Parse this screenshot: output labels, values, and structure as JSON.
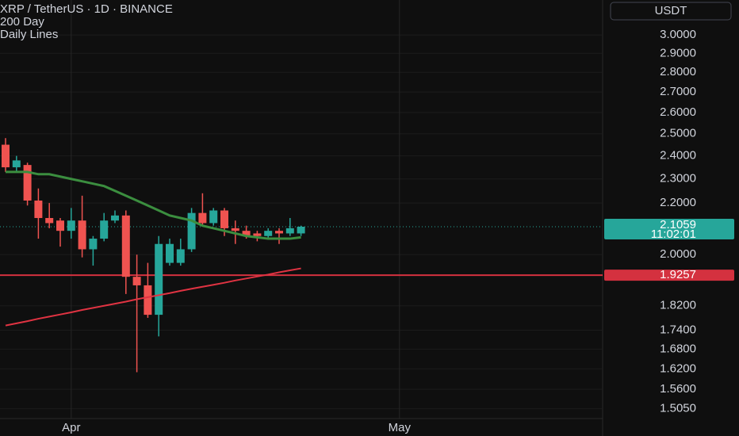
{
  "chart_data": {
    "type": "candlestick",
    "title": "XRP / TetherUS · 1D · BINANCE",
    "indicators": [
      "200 Day",
      "Daily Lines"
    ],
    "currency": "USDT",
    "log_scale": true,
    "grid": true,
    "ylim": [
      1.478,
      3.2
    ],
    "yticks": [
      {
        "value": 3,
        "label": "3.0000"
      },
      {
        "value": 2.9,
        "label": "2.9000"
      },
      {
        "value": 2.8,
        "label": "2.8000"
      },
      {
        "value": 2.7,
        "label": "2.7000"
      },
      {
        "value": 2.6,
        "label": "2.6000"
      },
      {
        "value": 2.5,
        "label": "2.5000"
      },
      {
        "value": 2.4,
        "label": "2.4000"
      },
      {
        "value": 2.3,
        "label": "2.3000"
      },
      {
        "value": 2.2,
        "label": "2.2000"
      },
      {
        "value": 2,
        "label": "2.0000"
      },
      {
        "value": 1.82,
        "label": "1.8200"
      },
      {
        "value": 1.74,
        "label": "1.7400"
      },
      {
        "value": 1.68,
        "label": "1.6800"
      },
      {
        "value": 1.62,
        "label": "1.6200"
      },
      {
        "value": 1.56,
        "label": "1.5600"
      },
      {
        "value": 1.505,
        "label": "1.5050"
      }
    ],
    "categories": [
      null,
      null,
      null,
      null,
      null,
      null,
      "Apr",
      null,
      null,
      null,
      null,
      null,
      null,
      null,
      null,
      null,
      null,
      null,
      null,
      null,
      null,
      null,
      null,
      null,
      null,
      null,
      null,
      null,
      null,
      null,
      null,
      null,
      null,
      null,
      null,
      null,
      "May",
      null,
      null,
      null,
      null,
      null,
      null,
      null,
      null,
      null,
      null,
      null,
      null,
      null,
      null,
      null,
      null,
      null,
      null
    ],
    "up_color": "#26a69a",
    "down_color": "#ef5350",
    "open": [
      2.45,
      2.35,
      2.36,
      2.21,
      2.14,
      2.13,
      2.09,
      2.13,
      2.02,
      2.06,
      2.13,
      2.15,
      1.92,
      1.89,
      1.79,
      1.97,
      1.97,
      2.02,
      2.16,
      2.12,
      2.17,
      2.1,
      2.09,
      2.08,
      2.07,
      2.09,
      2.08,
      2.08,
      null,
      null,
      null,
      null,
      null,
      null,
      null,
      null,
      null,
      null,
      null,
      null,
      null,
      null,
      null,
      null,
      null,
      null,
      null,
      null,
      null,
      null,
      null,
      null,
      null,
      null,
      null
    ],
    "high": [
      2.48,
      2.4,
      2.37,
      2.26,
      2.2,
      2.14,
      2.18,
      2.23,
      2.07,
      2.16,
      2.17,
      2.17,
      2.0,
      1.97,
      2.07,
      2.06,
      2.06,
      2.18,
      2.24,
      2.18,
      2.18,
      2.13,
      2.11,
      2.09,
      2.1,
      2.1,
      2.14,
      2.11,
      null,
      null,
      null,
      null,
      null,
      null,
      null,
      null,
      null,
      null,
      null,
      null,
      null,
      null,
      null,
      null,
      null,
      null,
      null,
      null,
      null,
      null,
      null,
      null,
      null,
      null,
      null
    ],
    "low": [
      2.33,
      2.33,
      2.19,
      2.06,
      2.1,
      2.03,
      2.06,
      1.99,
      1.96,
      2.05,
      2.12,
      1.86,
      1.61,
      1.78,
      1.72,
      1.96,
      1.96,
      2.01,
      2.11,
      2.11,
      2.07,
      2.04,
      2.06,
      2.05,
      2.06,
      2.04,
      2.07,
      2.07,
      null,
      null,
      null,
      null,
      null,
      null,
      null,
      null,
      null,
      null,
      null,
      null,
      null,
      null,
      null,
      null,
      null,
      null,
      null,
      null,
      null,
      null,
      null,
      null,
      null,
      null,
      null
    ],
    "close": [
      2.35,
      2.38,
      2.21,
      2.14,
      2.12,
      2.09,
      2.13,
      2.02,
      2.06,
      2.13,
      2.15,
      1.92,
      1.89,
      1.79,
      2.04,
      2.04,
      2.02,
      2.16,
      2.12,
      2.17,
      2.1,
      2.09,
      2.07,
      2.07,
      2.09,
      2.08,
      2.1,
      2.1059,
      null,
      null,
      null,
      null,
      null,
      null,
      null,
      null,
      null,
      null,
      null,
      null,
      null,
      null,
      null,
      null,
      null,
      null,
      null,
      null,
      null,
      null,
      null,
      null,
      null,
      null,
      null
    ],
    "moving_average": {
      "color": "#3b8e3f",
      "values": [
        2.33,
        2.33,
        2.33,
        2.32,
        2.32,
        2.31,
        2.3,
        2.29,
        2.28,
        2.27,
        2.25,
        2.23,
        2.21,
        2.19,
        2.17,
        2.15,
        2.14,
        2.13,
        2.11,
        2.1,
        2.09,
        2.08,
        2.07,
        2.065,
        2.06,
        2.06,
        2.06,
        2.065,
        null,
        null,
        null,
        null,
        null,
        null,
        null,
        null,
        null,
        null,
        null,
        null,
        null,
        null,
        null,
        null,
        null,
        null,
        null,
        null,
        null,
        null,
        null,
        null,
        null,
        null,
        null
      ]
    },
    "trend_line": {
      "color": "#e03342",
      "values": [
        1.755,
        1.762,
        1.769,
        1.777,
        1.784,
        1.791,
        1.798,
        1.806,
        1.813,
        1.82,
        1.827,
        1.834,
        1.842,
        1.849,
        1.856,
        1.863,
        1.871,
        1.878,
        1.885,
        1.892,
        1.899,
        1.907,
        1.914,
        1.921,
        1.928,
        1.936,
        1.943,
        1.95,
        null,
        null,
        null,
        null,
        null,
        null,
        null,
        null,
        null,
        null,
        null,
        null,
        null,
        null,
        null,
        null,
        null,
        null,
        null,
        null,
        null,
        null,
        null,
        null,
        null,
        null,
        null
      ]
    },
    "last_price": {
      "value": 2.1059,
      "countdown": "11:02:01",
      "color": "#26a69a"
    },
    "horizontal_line": {
      "value": 1.9257,
      "color": "#d4313f"
    }
  }
}
